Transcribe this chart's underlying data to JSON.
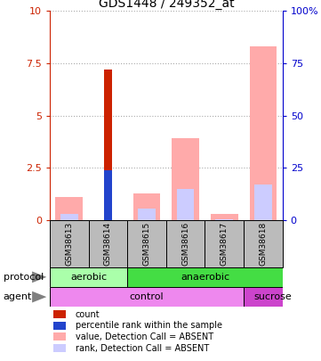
{
  "title": "GDS1448 / 249352_at",
  "samples": [
    "GSM38613",
    "GSM38614",
    "GSM38615",
    "GSM38616",
    "GSM38617",
    "GSM38618"
  ],
  "left_ylim": [
    0,
    10
  ],
  "right_ylim": [
    0,
    100
  ],
  "left_yticks": [
    0,
    2.5,
    5,
    7.5,
    10
  ],
  "left_yticklabels": [
    "0",
    "2.5",
    "5",
    "7.5",
    "10"
  ],
  "right_yticks": [
    0,
    25,
    50,
    75,
    100
  ],
  "right_yticklabels": [
    "0",
    "25",
    "50",
    "75",
    "100%"
  ],
  "red_bars": [
    0,
    7.2,
    0,
    0,
    0,
    0
  ],
  "blue_bars": [
    0,
    2.4,
    0,
    0,
    0,
    0
  ],
  "pink_bars": [
    1.1,
    0,
    1.3,
    3.9,
    0.3,
    8.3
  ],
  "lavender_bars": [
    0.3,
    0,
    0.55,
    1.5,
    0.05,
    1.7
  ],
  "protocol_color_aerobic": "#aaffaa",
  "protocol_color_anaerobic": "#44dd44",
  "agent_color_control": "#ee88ee",
  "agent_color_sucrose": "#cc44cc",
  "left_axis_color": "#cc2200",
  "right_axis_color": "#0000cc",
  "grid_color": "#aaaaaa",
  "background_color": "#ffffff",
  "sample_box_color": "#bbbbbb",
  "legend_items": [
    {
      "color": "#cc2200",
      "label": "count"
    },
    {
      "color": "#2244cc",
      "label": "percentile rank within the sample"
    },
    {
      "color": "#ffaaaa",
      "label": "value, Detection Call = ABSENT"
    },
    {
      "color": "#ccccff",
      "label": "rank, Detection Call = ABSENT"
    }
  ]
}
